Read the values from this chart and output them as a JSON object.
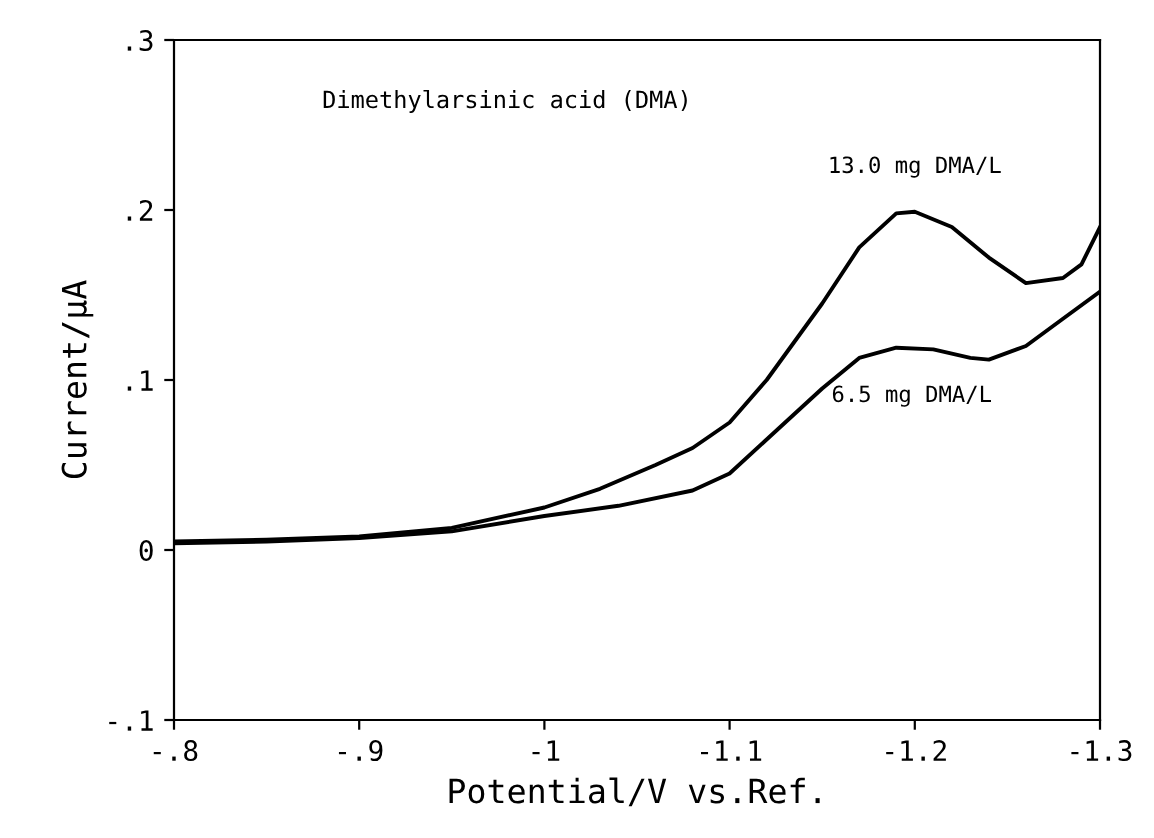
{
  "chart_data": {
    "type": "line",
    "xlabel": "Potential/V vs.Ref.",
    "ylabel": "Current/µA",
    "annotations": [
      "Dimethylarsinic acid (DMA)"
    ],
    "xlim": [
      -0.8,
      -1.3
    ],
    "ylim": [
      -0.1,
      0.3
    ],
    "xticks": [
      {
        "value": -0.8,
        "label": "-.8"
      },
      {
        "value": -0.9,
        "label": "-.9"
      },
      {
        "value": -1.0,
        "label": "-1"
      },
      {
        "value": -1.1,
        "label": "-1.1"
      },
      {
        "value": -1.2,
        "label": "-1.2"
      },
      {
        "value": -1.3,
        "label": "-1.3"
      }
    ],
    "yticks": [
      {
        "value": -0.1,
        "label": "-.1"
      },
      0,
      {
        "value": 0.1,
        "label": ".1"
      },
      {
        "value": 0.2,
        "label": ".2"
      },
      {
        "value": 0.3,
        "label": ".3"
      }
    ],
    "grid": false,
    "legend": false,
    "marker": "none",
    "line_style": "solid",
    "series": [
      {
        "name": "13.0 mg DMA/L",
        "color": "#000000",
        "x": [
          -0.8,
          -0.85,
          -0.9,
          -0.95,
          -1.0,
          -1.03,
          -1.06,
          -1.08,
          -1.1,
          -1.12,
          -1.15,
          -1.17,
          -1.19,
          -1.2,
          -1.22,
          -1.24,
          -1.26,
          -1.28,
          -1.29,
          -1.3
        ],
        "values": [
          0.005,
          0.006,
          0.008,
          0.013,
          0.025,
          0.036,
          0.05,
          0.06,
          0.075,
          0.1,
          0.145,
          0.178,
          0.198,
          0.199,
          0.19,
          0.172,
          0.157,
          0.16,
          0.168,
          0.19
        ]
      },
      {
        "name": "6.5 mg DMA/L",
        "color": "#000000",
        "x": [
          -0.8,
          -0.85,
          -0.9,
          -0.95,
          -1.0,
          -1.04,
          -1.08,
          -1.1,
          -1.12,
          -1.15,
          -1.17,
          -1.19,
          -1.21,
          -1.23,
          -1.24,
          -1.26,
          -1.28,
          -1.3
        ],
        "values": [
          0.004,
          0.005,
          0.007,
          0.011,
          0.02,
          0.026,
          0.035,
          0.045,
          0.065,
          0.095,
          0.113,
          0.119,
          0.118,
          0.113,
          0.112,
          0.12,
          0.136,
          0.152
        ]
      }
    ]
  }
}
